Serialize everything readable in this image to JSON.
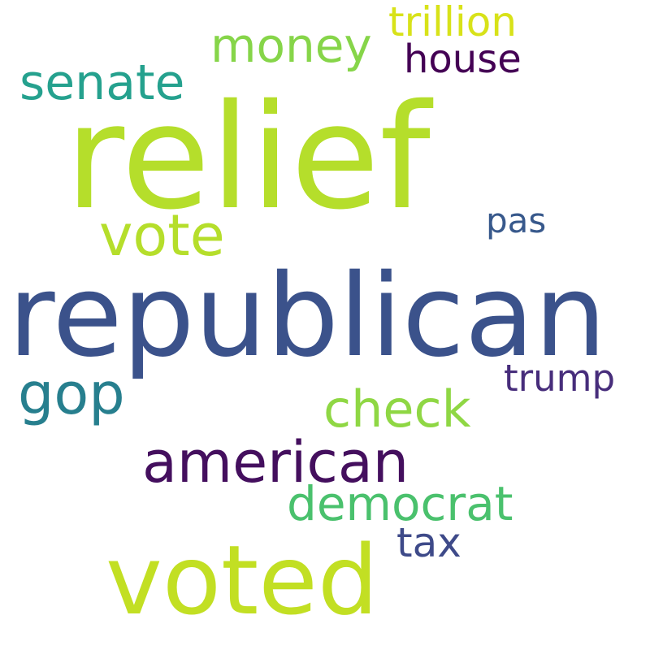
{
  "words": [
    {
      "id": "trillion",
      "text": "trillion",
      "color": "#d8e219"
    },
    {
      "id": "money",
      "text": "money",
      "color": "#86d549"
    },
    {
      "id": "house",
      "text": "house",
      "color": "#440154"
    },
    {
      "id": "senate",
      "text": "senate",
      "color": "#25a18e"
    },
    {
      "id": "relief",
      "text": "relief",
      "color": "#b5de2b"
    },
    {
      "id": "vote",
      "text": "vote",
      "color": "#b5de2b"
    },
    {
      "id": "pas",
      "text": "pas",
      "color": "#38598c"
    },
    {
      "id": "republican",
      "text": "republican",
      "color": "#3b528b"
    },
    {
      "id": "trump",
      "text": "trump",
      "color": "#472d7b"
    },
    {
      "id": "gop",
      "text": "gop",
      "color": "#277f8e"
    },
    {
      "id": "check",
      "text": "check",
      "color": "#8fd744"
    },
    {
      "id": "american",
      "text": "american",
      "color": "#440f5e"
    },
    {
      "id": "democrat",
      "text": "democrat",
      "color": "#4ac16d"
    },
    {
      "id": "tax",
      "text": "tax",
      "color": "#3e4a89"
    },
    {
      "id": "voted",
      "text": "voted",
      "color": "#c2df23"
    }
  ]
}
